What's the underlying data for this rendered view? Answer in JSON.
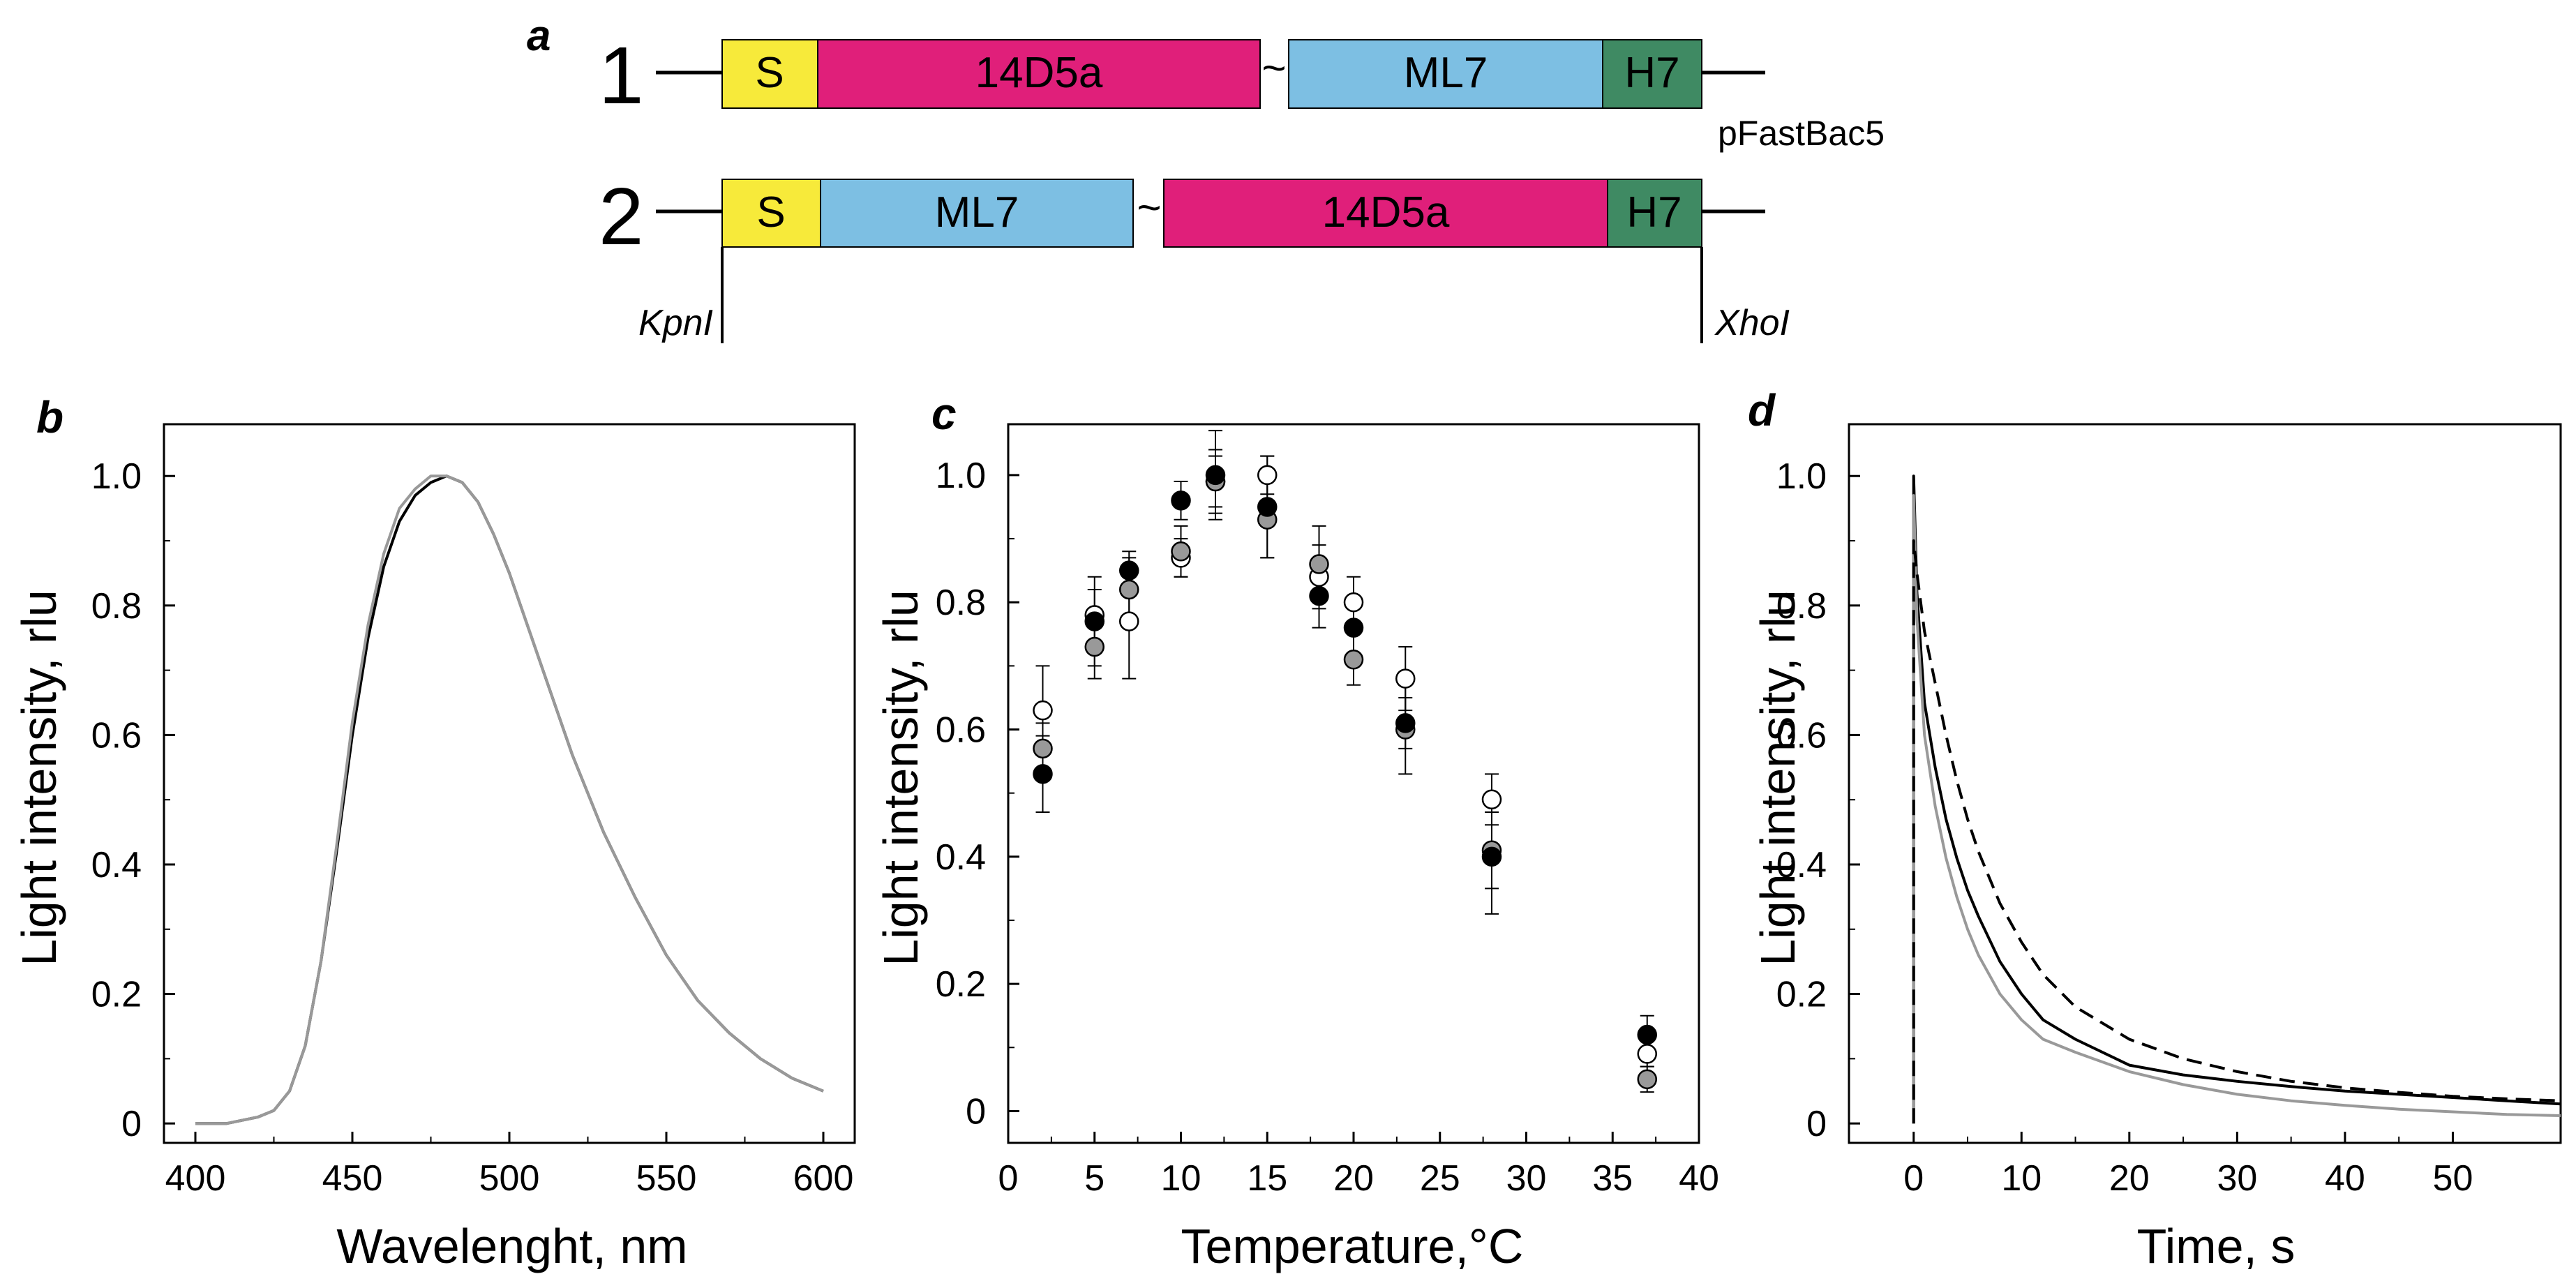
{
  "panel_a": {
    "label": "a",
    "construct1": {
      "number": "1",
      "boxes": [
        {
          "label": "S",
          "color": "#f7ea3a"
        },
        {
          "label": "14D5a",
          "color": "#e01f7a"
        },
        {
          "label": "ML7",
          "color": "#7dbfe3"
        },
        {
          "label": "H7",
          "color": "#3f8a63"
        }
      ],
      "linker": "~",
      "vector": "pFastBac5"
    },
    "construct2": {
      "number": "2",
      "boxes": [
        {
          "label": "S",
          "color": "#f7ea3a"
        },
        {
          "label": "ML7",
          "color": "#7dbfe3"
        },
        {
          "label": "14D5a",
          "color": "#e01f7a"
        },
        {
          "label": "H7",
          "color": "#3f8a63"
        }
      ],
      "linker": "~"
    },
    "site_left": "KpnI",
    "site_right": "XhoI"
  },
  "chart_data": [
    {
      "panel": "b",
      "type": "line",
      "title": "",
      "xlabel": "Wavelenght, nm",
      "ylabel": "Light intensity, rlu",
      "xlim": [
        390,
        610
      ],
      "ylim": [
        -0.03,
        1.08
      ],
      "xticks": [
        400,
        450,
        500,
        550,
        600
      ],
      "xtick_labels": [
        "400",
        "450",
        "500",
        "550",
        "600"
      ],
      "yticks": [
        0,
        0.2,
        0.4,
        0.6,
        0.8,
        1.0
      ],
      "ytick_labels": [
        "0",
        "0.2",
        "0.4",
        "0.6",
        "0.8",
        "1.0"
      ],
      "series": [
        {
          "name": "1",
          "color": "#000000",
          "dash": false,
          "x": [
            400,
            410,
            420,
            425,
            430,
            435,
            440,
            445,
            450,
            455,
            460,
            465,
            470,
            475,
            480,
            485,
            490,
            495,
            500,
            510,
            520,
            530,
            540,
            550,
            560,
            570,
            580,
            590,
            600
          ],
          "y": [
            0.0,
            0.0,
            0.01,
            0.02,
            0.05,
            0.12,
            0.25,
            0.42,
            0.6,
            0.75,
            0.86,
            0.93,
            0.97,
            0.99,
            1.0,
            0.99,
            0.96,
            0.91,
            0.85,
            0.71,
            0.57,
            0.45,
            0.35,
            0.26,
            0.19,
            0.14,
            0.1,
            0.07,
            0.05
          ]
        },
        {
          "name": "2",
          "color": "#999999",
          "dash": false,
          "x": [
            400,
            410,
            420,
            425,
            430,
            435,
            440,
            445,
            450,
            455,
            460,
            465,
            470,
            475,
            480,
            485,
            490,
            495,
            500,
            510,
            520,
            530,
            540,
            550,
            560,
            570,
            580,
            590,
            600
          ],
          "y": [
            0.0,
            0.0,
            0.01,
            0.02,
            0.05,
            0.12,
            0.25,
            0.43,
            0.62,
            0.77,
            0.88,
            0.95,
            0.98,
            1.0,
            1.0,
            0.99,
            0.96,
            0.91,
            0.85,
            0.71,
            0.57,
            0.45,
            0.35,
            0.26,
            0.19,
            0.14,
            0.1,
            0.07,
            0.05
          ]
        }
      ]
    },
    {
      "panel": "c",
      "type": "scatter",
      "title": "",
      "xlabel": "Temperature,°C",
      "ylabel": "Light intensity, rlu",
      "xlim": [
        0,
        40
      ],
      "ylim": [
        -0.05,
        1.08
      ],
      "xticks": [
        0,
        5,
        10,
        15,
        20,
        25,
        30,
        35,
        40
      ],
      "xtick_labels": [
        "0",
        "5",
        "10",
        "15",
        "20",
        "25",
        "30",
        "35",
        "40"
      ],
      "yticks": [
        0,
        0.2,
        0.4,
        0.6,
        0.8,
        1.0
      ],
      "ytick_labels": [
        "0",
        "0.2",
        "0.4",
        "0.6",
        "0.8",
        "1.0"
      ],
      "series": [
        {
          "name": "open",
          "fill": "#ffffff",
          "x": [
            2,
            5,
            7,
            10,
            12,
            15,
            18,
            20,
            23,
            28,
            37
          ],
          "y": [
            0.63,
            0.78,
            0.77,
            0.87,
            0.99,
            1.0,
            0.84,
            0.8,
            0.68,
            0.49,
            0.09
          ],
          "err": [
            0.07,
            0.04,
            0.09,
            0.03,
            0.04,
            0.03,
            0.05,
            0.04,
            0.05,
            0.04,
            0.02
          ]
        },
        {
          "name": "grey",
          "fill": "#999999",
          "x": [
            2,
            5,
            7,
            10,
            12,
            15,
            18,
            20,
            23,
            28,
            37
          ],
          "y": [
            0.57,
            0.73,
            0.82,
            0.88,
            0.99,
            0.93,
            0.86,
            0.71,
            0.6,
            0.41,
            0.05
          ],
          "err": [
            0.04,
            0.05,
            0.05,
            0.04,
            0.05,
            0.06,
            0.06,
            0.04,
            0.07,
            0.06,
            0.02
          ]
        },
        {
          "name": "black",
          "fill": "#000000",
          "x": [
            2,
            5,
            7,
            10,
            12,
            15,
            18,
            20,
            23,
            28,
            37
          ],
          "y": [
            0.53,
            0.77,
            0.85,
            0.96,
            1.0,
            0.95,
            0.81,
            0.76,
            0.61,
            0.4,
            0.12
          ],
          "err": [
            0.06,
            0.07,
            0.03,
            0.03,
            0.07,
            0.08,
            0.05,
            0.05,
            0.04,
            0.09,
            0.03
          ]
        }
      ]
    },
    {
      "panel": "d",
      "type": "line",
      "title": "",
      "xlabel": "Time, s",
      "ylabel": "Light intensity, rlu",
      "xlim": [
        -6,
        60
      ],
      "ylim": [
        -0.03,
        1.08
      ],
      "xticks": [
        0,
        10,
        20,
        30,
        40,
        50
      ],
      "xtick_labels": [
        "0",
        "10",
        "20",
        "30",
        "40",
        "50"
      ],
      "yticks": [
        0,
        0.2,
        0.4,
        0.6,
        0.8,
        1.0
      ],
      "ytick_labels": [
        "0",
        "0.2",
        "0.4",
        "0.6",
        "0.8",
        "1.0"
      ],
      "series": [
        {
          "name": "black solid",
          "color": "#000000",
          "dash": false,
          "x": [
            0,
            0,
            0.3,
            1,
            2,
            3,
            4,
            5,
            6,
            8,
            10,
            12,
            15,
            20,
            25,
            30,
            35,
            40,
            45,
            50,
            55,
            60
          ],
          "y": [
            0,
            1.0,
            0.82,
            0.65,
            0.55,
            0.47,
            0.41,
            0.36,
            0.32,
            0.25,
            0.2,
            0.16,
            0.13,
            0.09,
            0.075,
            0.065,
            0.057,
            0.05,
            0.045,
            0.04,
            0.035,
            0.03
          ]
        },
        {
          "name": "grey solid",
          "color": "#999999",
          "dash": false,
          "x": [
            0,
            0,
            0.3,
            1,
            2,
            3,
            4,
            5,
            6,
            8,
            10,
            12,
            15,
            20,
            25,
            30,
            35,
            40,
            45,
            50,
            55,
            60
          ],
          "y": [
            0,
            0.97,
            0.78,
            0.6,
            0.49,
            0.41,
            0.35,
            0.3,
            0.26,
            0.2,
            0.16,
            0.13,
            0.11,
            0.08,
            0.06,
            0.045,
            0.035,
            0.028,
            0.022,
            0.018,
            0.014,
            0.012
          ]
        },
        {
          "name": "black dashed",
          "color": "#000000",
          "dash": true,
          "x": [
            0,
            0,
            0.3,
            1,
            2,
            3,
            4,
            5,
            6,
            8,
            10,
            12,
            15,
            20,
            25,
            30,
            35,
            40,
            45,
            50,
            55,
            60
          ],
          "y": [
            0,
            0.9,
            0.85,
            0.76,
            0.68,
            0.6,
            0.53,
            0.47,
            0.42,
            0.34,
            0.28,
            0.23,
            0.18,
            0.13,
            0.1,
            0.08,
            0.065,
            0.055,
            0.048,
            0.042,
            0.038,
            0.035
          ]
        }
      ]
    }
  ]
}
